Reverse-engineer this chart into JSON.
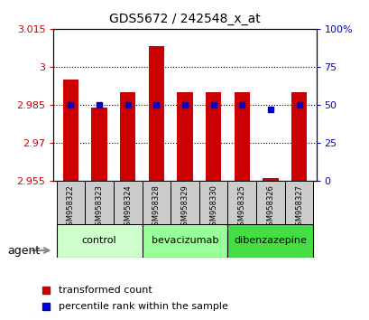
{
  "title": "GDS5672 / 242548_x_at",
  "samples": [
    "GSM958322",
    "GSM958323",
    "GSM958324",
    "GSM958328",
    "GSM958329",
    "GSM958330",
    "GSM958325",
    "GSM958326",
    "GSM958327"
  ],
  "transformed_counts": [
    2.995,
    2.984,
    2.99,
    3.008,
    2.99,
    2.99,
    2.99,
    2.956,
    2.99
  ],
  "percentile_ranks": [
    50,
    50,
    50,
    50,
    50,
    50,
    50,
    47,
    50
  ],
  "ylim": [
    2.955,
    3.015
  ],
  "yticks": [
    2.955,
    2.97,
    2.985,
    3.0,
    3.015
  ],
  "ytick_labels": [
    "2.955",
    "2.97",
    "2.985",
    "3",
    "3.015"
  ],
  "y2lim": [
    0,
    100
  ],
  "y2ticks": [
    0,
    25,
    50,
    75,
    100
  ],
  "y2tick_labels": [
    "0",
    "25",
    "50",
    "75",
    "100%"
  ],
  "bar_color": "#cc0000",
  "dot_color": "#0000cc",
  "bar_bottom": 2.955,
  "groups": [
    {
      "label": "control",
      "indices": [
        0,
        1,
        2
      ],
      "color": "#ccffcc"
    },
    {
      "label": "bevacizumab",
      "indices": [
        3,
        4,
        5
      ],
      "color": "#99ff99"
    },
    {
      "label": "dibenzazepine",
      "indices": [
        6,
        7,
        8
      ],
      "color": "#44dd44"
    }
  ],
  "agent_label": "agent",
  "legend_bar_label": "transformed count",
  "legend_dot_label": "percentile rank within the sample",
  "grid_color": "#000000",
  "tick_color_left": "#cc0000",
  "tick_color_right": "#0000cc",
  "bg_color": "#ffffff",
  "sample_box_color": "#cccccc"
}
